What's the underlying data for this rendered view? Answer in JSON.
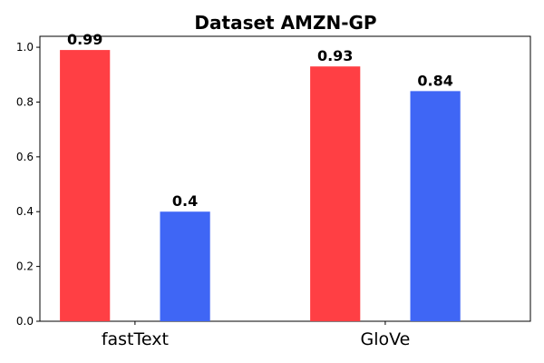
{
  "chart_data": {
    "type": "bar",
    "title": "Dataset AMZN-GP",
    "categories": [
      "fastText",
      "GloVe"
    ],
    "series": [
      {
        "color": "#ff3f44",
        "values": [
          0.99,
          0.93
        ],
        "labels": [
          "0.99",
          "0.93"
        ]
      },
      {
        "color": "#3f66f5",
        "values": [
          0.4,
          0.84
        ],
        "labels": [
          "0.4",
          "0.84"
        ]
      }
    ],
    "ylim": [
      0,
      1.04
    ],
    "yticks": [
      0.0,
      0.2,
      0.4,
      0.6,
      0.8,
      1.0
    ],
    "ytick_labels": [
      "0.0",
      "0.2",
      "0.4",
      "0.6",
      "0.8",
      "1.0"
    ],
    "xlabel": "",
    "ylabel": "",
    "grid": false,
    "legend": "none"
  }
}
